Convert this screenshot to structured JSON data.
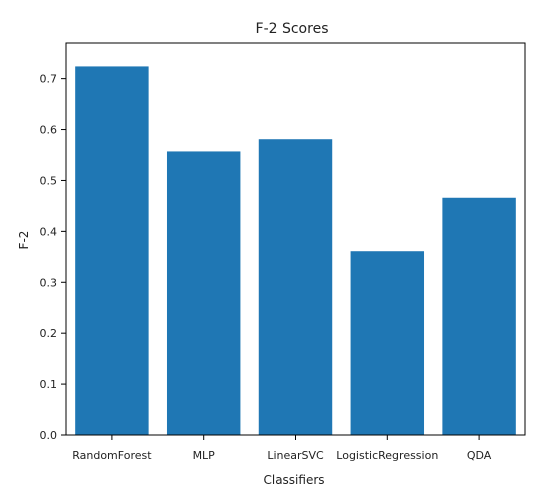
{
  "chart_data": {
    "type": "bar",
    "title": "F-2 Scores",
    "xlabel": "Classifiers",
    "ylabel": "F-2",
    "categories": [
      "RandomForest",
      "MLP",
      "LinearSVC",
      "LogisticRegression",
      "QDA"
    ],
    "values": [
      0.724,
      0.557,
      0.581,
      0.361,
      0.466
    ],
    "ylim": [
      0,
      0.77
    ],
    "yticks": [
      "0.0",
      "0.1",
      "0.2",
      "0.3",
      "0.4",
      "0.5",
      "0.6",
      "0.7"
    ],
    "grid": false,
    "colors": {
      "bar": "#1f77b4"
    }
  }
}
